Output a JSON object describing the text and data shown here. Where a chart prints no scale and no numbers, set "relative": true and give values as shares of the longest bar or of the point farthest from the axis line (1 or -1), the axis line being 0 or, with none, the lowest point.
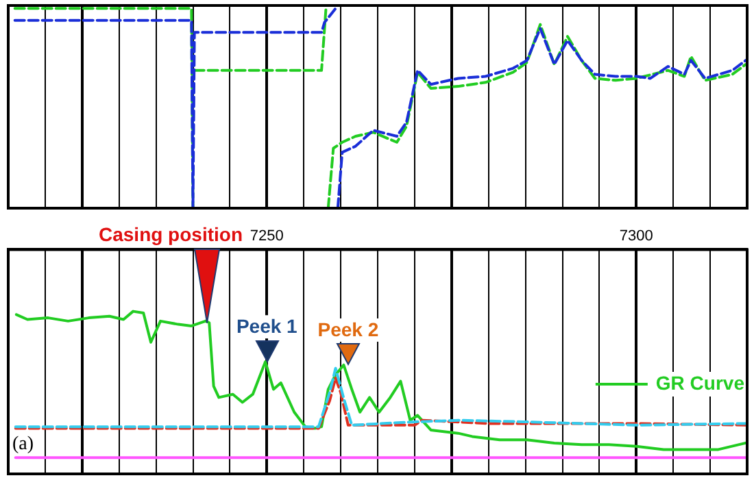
{
  "chart_data": [
    {
      "type": "line",
      "relative": true,
      "xlim": [
        7215,
        7315
      ],
      "xticks": [
        {
          "value": 7220,
          "label": null
        },
        {
          "value": 7225,
          "label": null
        },
        {
          "value": 7230,
          "label": null
        },
        {
          "value": 7235,
          "label": null
        },
        {
          "value": 7240,
          "label": null
        },
        {
          "value": 7245,
          "label": null
        },
        {
          "value": 7250,
          "label": null
        },
        {
          "value": 7255,
          "label": null
        },
        {
          "value": 7260,
          "label": null
        },
        {
          "value": 7265,
          "label": null
        },
        {
          "value": 7270,
          "label": null
        },
        {
          "value": 7275,
          "label": null
        },
        {
          "value": 7280,
          "label": null
        },
        {
          "value": 7285,
          "label": null
        },
        {
          "value": 7290,
          "label": null
        },
        {
          "value": 7295,
          "label": null
        },
        {
          "value": 7300,
          "label": null
        },
        {
          "value": 7305,
          "label": null
        },
        {
          "value": 7310,
          "label": null
        }
      ],
      "tick_labels": false,
      "grid": "x",
      "marker": "none",
      "series": [
        {
          "color": "#1a2ed8",
          "line_style": "dashed",
          "x": [
            7215.9,
            7239.8,
            7240.0,
            7240.2,
            7257.4,
            7257.8,
            7259.3,
            7259.4,
            7259.6,
            7260.2,
            7262.0,
            7264.4,
            7267.6,
            7268.9,
            7270.4,
            7272.2,
            7275.9,
            7279.6,
            7283.3,
            7285.2,
            7287.0,
            7288.9,
            7290.7,
            7292.6,
            7294.4,
            7297.2,
            7300.0,
            7301.9,
            7304.3,
            7306.5,
            7307.4,
            7309.3,
            7313.0,
            7314.8
          ],
          "values": [
            0.94,
            0.94,
            0.0,
            0.88,
            0.88,
            0.93,
            1.0,
            null,
            0.0,
            0.28,
            0.31,
            0.39,
            0.36,
            0.43,
            0.69,
            0.62,
            0.65,
            0.66,
            0.7,
            0.74,
            0.9,
            0.72,
            0.84,
            0.74,
            0.67,
            0.66,
            0.66,
            0.65,
            0.71,
            0.67,
            0.74,
            0.65,
            0.69,
            0.74
          ]
        },
        {
          "color": "#22cc22",
          "line_style": "dashed",
          "x": [
            7215.9,
            7239.8,
            7240.0,
            7240.1,
            7240.2,
            7257.4,
            7258.0,
            7258.2,
            7258.3,
            7259.0,
            7260.2,
            7262.0,
            7264.4,
            7267.6,
            7268.9,
            7270.4,
            7272.2,
            7275.9,
            7279.6,
            7283.3,
            7285.2,
            7287.0,
            7288.9,
            7290.7,
            7292.6,
            7294.4,
            7297.2,
            7300.0,
            7304.3,
            7306.5,
            7307.4,
            7309.3,
            7313.0,
            7314.8
          ],
          "values": [
            1.0,
            1.0,
            0.0,
            null,
            0.69,
            0.69,
            1.0,
            null,
            0.0,
            0.3,
            0.33,
            0.36,
            0.38,
            0.33,
            0.41,
            0.68,
            0.6,
            0.61,
            0.63,
            0.68,
            0.73,
            0.92,
            0.72,
            0.86,
            0.74,
            0.65,
            0.64,
            0.65,
            0.69,
            0.66,
            0.76,
            0.64,
            0.67,
            0.72
          ]
        }
      ]
    },
    {
      "type": "line",
      "relative": true,
      "xlim": [
        7215,
        7315
      ],
      "xticks": [
        {
          "value": 7220,
          "label": null
        },
        {
          "value": 7225,
          "label": null
        },
        {
          "value": 7230,
          "label": null
        },
        {
          "value": 7235,
          "label": null
        },
        {
          "value": 7240,
          "label": null
        },
        {
          "value": 7245,
          "label": null
        },
        7250,
        {
          "value": 7255,
          "label": null
        },
        {
          "value": 7260,
          "label": null
        },
        {
          "value": 7265,
          "label": null
        },
        {
          "value": 7270,
          "label": null
        },
        {
          "value": 7275,
          "label": null
        },
        {
          "value": 7280,
          "label": null
        },
        {
          "value": 7285,
          "label": null
        },
        {
          "value": 7290,
          "label": null
        },
        {
          "value": 7295,
          "label": null
        },
        7300,
        {
          "value": 7305,
          "label": null
        },
        {
          "value": 7310,
          "label": null
        }
      ],
      "grid": "x",
      "marker": "none",
      "legend": "right",
      "annotations": [
        {
          "text": "Casing position",
          "x": 7241.9,
          "y": 0.93
        },
        {
          "text": "Peek 1",
          "x": 7250,
          "y": 0.69
        },
        {
          "text": "Peek 2",
          "x": 7261,
          "y": 0.67
        },
        "(a)"
      ],
      "series": [
        {
          "color": "#33ccee",
          "line_style": "dashed",
          "x": [
            7216,
            7257,
            7258.5,
            7259.3,
            7260.5,
            7261.5,
            7270,
            7276,
            7285,
            7300,
            7315
          ],
          "values": [
            0.29,
            0.29,
            0.5,
            0.65,
            0.45,
            0.3,
            0.32,
            0.33,
            0.32,
            0.3,
            0.31
          ]
        },
        {
          "color": "#e03020",
          "line_style": "dashed",
          "x": [
            7216,
            7257,
            7258.5,
            7259.3,
            7260,
            7261,
            7270,
            7271,
            7280,
            7300,
            7315
          ],
          "values": [
            0.28,
            0.28,
            0.45,
            0.59,
            0.5,
            0.3,
            0.3,
            0.33,
            0.31,
            0.31,
            0.3
          ]
        },
        {
          "color": "#ff55ff",
          "line_style": "solid",
          "x": [
            7216,
            7315
          ],
          "values": [
            0.1,
            0.1
          ]
        },
        {
          "name": "GR Curve",
          "color": "#22cc22",
          "line_style": "solid",
          "x": [
            7216.1,
            7217.6,
            7220.4,
            7223.1,
            7225.9,
            7228.7,
            7230.6,
            7231.9,
            7233.3,
            7234.3,
            7235.6,
            7238.0,
            7239.8,
            7241.7,
            7242.2,
            7242.8,
            7243.5,
            7245.4,
            7246.7,
            7248.1,
            7249.8,
            7250.9,
            7251.9,
            7253.7,
            7255.2,
            7256.5,
            7257.4,
            7258.3,
            7259.3,
            7260.4,
            7261.5,
            7262.6,
            7263.9,
            7265.2,
            7266.7,
            7268.1,
            7269.4,
            7270.4,
            7272.2,
            7275.9,
            7277.8,
            7281.5,
            7285.2,
            7288.9,
            7292.6,
            7296.3,
            7300.0,
            7303.7,
            7307.4,
            7311.1,
            7314.8
          ],
          "values": [
            0.98,
            0.95,
            0.96,
            0.94,
            0.96,
            0.97,
            0.95,
            1.0,
            0.99,
            0.81,
            0.94,
            0.92,
            0.91,
            0.94,
            0.93,
            0.54,
            0.47,
            0.49,
            0.44,
            0.49,
            0.69,
            0.52,
            0.56,
            0.38,
            0.29,
            0.28,
            0.29,
            0.52,
            0.61,
            0.67,
            0.52,
            0.38,
            0.47,
            0.38,
            0.47,
            0.57,
            0.33,
            0.36,
            0.27,
            0.25,
            0.23,
            0.21,
            0.21,
            0.19,
            0.18,
            0.18,
            0.17,
            0.15,
            0.15,
            0.15,
            0.19
          ]
        }
      ]
    }
  ]
}
